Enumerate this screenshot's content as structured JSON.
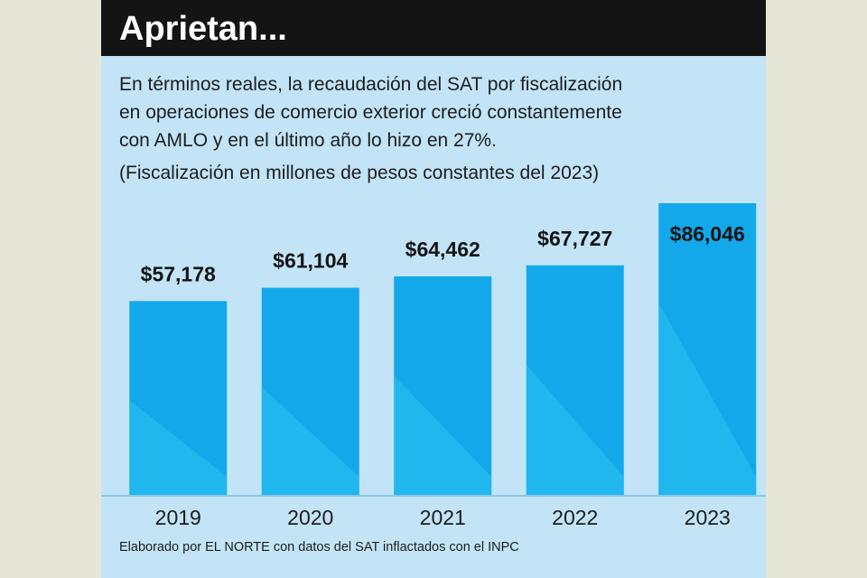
{
  "header": {
    "title": "Aprietan..."
  },
  "subtitle_lines": [
    "En términos reales, la recaudación del SAT por fiscalización",
    "en operaciones de comercio exterior creció constantemente",
    "con AMLO y en el último año lo hizo en 27%."
  ],
  "note": "(Fiscalización en millones de pesos constantes del 2023)",
  "footer": "Elaborado por EL NORTE con datos del SAT inflactados con el INPC",
  "colors": {
    "bar_main": "#13a8ea",
    "bar_light": "#2bc3f3",
    "background": "#c2e4f6",
    "header": "#141414",
    "text": "#1d1d1d"
  },
  "chart_data": {
    "type": "bar",
    "categories": [
      "2019",
      "2020",
      "2021",
      "2022",
      "2023"
    ],
    "values": [
      57178,
      61104,
      64462,
      67727,
      86046
    ],
    "data_labels": [
      "$57,178",
      "$61,104",
      "$64,462",
      "$67,727",
      "$86,046"
    ],
    "title": "Aprietan...",
    "xlabel": "",
    "ylabel": "",
    "units": "millones de pesos constantes del 2023",
    "highlight_index": 4
  }
}
